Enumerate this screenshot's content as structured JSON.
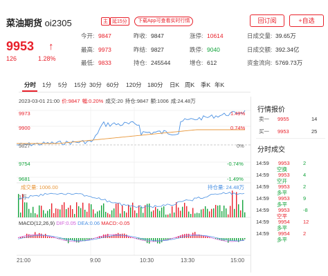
{
  "header": {
    "name": "菜油期货",
    "code": "oi2305",
    "badge_main": "主",
    "badge_delay": "延15分",
    "download_label": "下载App可查看实时行情",
    "back_label": "回订阅",
    "watch_label": "+自选"
  },
  "quote": {
    "price": "9953",
    "arrow": "↑",
    "change": "126",
    "change_pct": "1.28%"
  },
  "stats": [
    {
      "label": "今开:",
      "value": "9847",
      "color": "#e8202a"
    },
    {
      "label": "昨收:",
      "value": "9847",
      "color": "#333333"
    },
    {
      "label": "涨停:",
      "value": "10614",
      "color": "#e8202a"
    },
    {
      "label": "日成交量:",
      "value": "39.65万",
      "color": "#333333"
    },
    {
      "label": "最高:",
      "value": "9973",
      "color": "#e8202a"
    },
    {
      "label": "昨结:",
      "value": "9827",
      "color": "#333333"
    },
    {
      "label": "跌停:",
      "value": "9040",
      "color": "#12a33b"
    },
    {
      "label": "日成交额:",
      "value": "392.34亿",
      "color": "#333333"
    },
    {
      "label": "最低:",
      "value": "9833",
      "color": "#e8202a"
    },
    {
      "label": "持仓:",
      "value": "245544",
      "color": "#333333"
    },
    {
      "label": "增仓:",
      "value": "612",
      "color": "#333333"
    },
    {
      "label": "资金流向:",
      "value": "5769.73万",
      "color": "#333333"
    }
  ],
  "tabs": [
    "分时",
    "1分",
    "5分",
    "15分",
    "30分",
    "60分",
    "120分",
    "180分",
    "日K",
    "周K",
    "季K",
    "年K"
  ],
  "info": {
    "date": "2023-03-01 21:00",
    "price": "价:9847",
    "pct": "幅:0.20%",
    "vol": "成交:20",
    "oi": "持仓:9847",
    "amt": "额:1006",
    "amt2": "成:24.48万"
  },
  "yaxis": {
    "p1": "9973",
    "p2": "9900",
    "p3": "9827",
    "p4": "9754",
    "p5": "9681",
    "r1": "1.49%",
    "r2": "0.74%",
    "r3": "0%",
    "r4": "-0.74%",
    "r5": "-1.49%"
  },
  "vol_labels": {
    "vol": "成交量: 1006.00",
    "oi": "持仓量: 24.48万",
    "unit": "1万"
  },
  "macd": {
    "title": "MACD(12,26,9)",
    "dif": "DIF:0.05",
    "dea": "DEA:0.06",
    "macd": "MACD:-0.05"
  },
  "xaxis": [
    "21:00",
    "9:00",
    "10:30",
    "13:30",
    "15:00"
  ],
  "panel": {
    "orders_title": "行情报价",
    "sell": {
      "label": "卖一",
      "price": "9955",
      "vol": "14"
    },
    "buy": {
      "label": "买一",
      "price": "9953",
      "vol": "25"
    },
    "trades_title": "分时成交",
    "trades": [
      {
        "time": "14:59",
        "price": "9953",
        "vol": "2",
        "vcolor": "#12a33b",
        "note": "空换",
        "ncolor": "#12a33b"
      },
      {
        "time": "14:59",
        "price": "9953",
        "vol": "4",
        "vcolor": "#12a33b",
        "note": "空开",
        "ncolor": "#12a33b"
      },
      {
        "time": "14:59",
        "price": "9953",
        "vol": "2",
        "vcolor": "#12a33b",
        "note": "多平",
        "ncolor": "#12a33b"
      },
      {
        "time": "14:59",
        "price": "9953",
        "vol": "9",
        "vcolor": "#12a33b",
        "note": "多平",
        "ncolor": "#12a33b"
      },
      {
        "time": "14:59",
        "price": "9953",
        "vol": "-8",
        "vcolor": "#12a33b",
        "note": "空平",
        "ncolor": "#e8202a"
      },
      {
        "time": "14:59",
        "price": "9954",
        "vol": "12",
        "vcolor": "#e8202a",
        "note": "多平",
        "ncolor": "#12a33b"
      },
      {
        "time": "14:59",
        "price": "9954",
        "vol": "2",
        "vcolor": "#e8202a",
        "note": "多平",
        "ncolor": "#12a33b"
      }
    ]
  },
  "colors": {
    "up": "#e8202a",
    "down": "#12a33b",
    "price_line": "#4a90e2",
    "avg_line": "#e8973b"
  }
}
